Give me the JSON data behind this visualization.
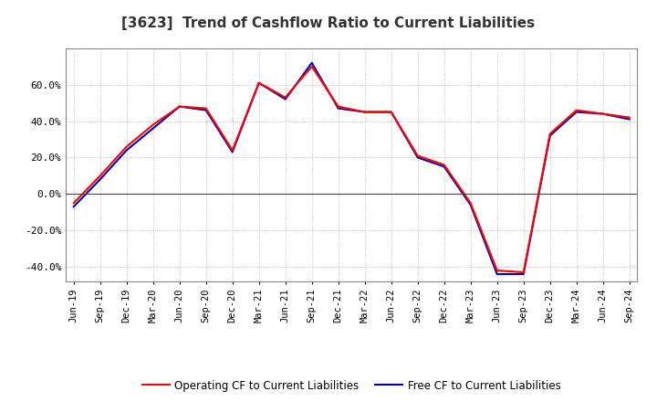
{
  "title": "[3623]  Trend of Cashflow Ratio to Current Liabilities",
  "x_labels": [
    "Jun-19",
    "Sep-19",
    "Dec-19",
    "Mar-20",
    "Jun-20",
    "Sep-20",
    "Dec-20",
    "Mar-21",
    "Jun-21",
    "Sep-21",
    "Dec-21",
    "Mar-22",
    "Jun-22",
    "Sep-22",
    "Dec-22",
    "Mar-23",
    "Jun-23",
    "Sep-23",
    "Dec-23",
    "Mar-24",
    "Jun-24",
    "Sep-24"
  ],
  "operating_cf": [
    -5.0,
    10.0,
    26.0,
    38.0,
    48.0,
    47.0,
    24.0,
    61.0,
    53.0,
    70.0,
    48.0,
    45.0,
    45.0,
    21.0,
    16.0,
    -5.0,
    -42.0,
    -43.0,
    33.0,
    46.0,
    44.0,
    42.0
  ],
  "free_cf": [
    -7.0,
    8.0,
    24.0,
    36.0,
    48.0,
    46.0,
    23.0,
    61.0,
    52.0,
    72.0,
    47.0,
    45.0,
    45.0,
    20.0,
    15.0,
    -6.0,
    -44.0,
    -44.0,
    32.0,
    45.0,
    44.0,
    41.0
  ],
  "operating_color": "#ff0000",
  "free_color": "#0000bb",
  "ylim": [
    -48,
    80
  ],
  "yticks": [
    -40,
    -20,
    0,
    20,
    40,
    60
  ],
  "background_color": "#ffffff",
  "grid_color": "#999999",
  "title_fontsize": 11,
  "axis_label_fontsize": 7.5,
  "legend_op": "Operating CF to Current Liabilities",
  "legend_free": "Free CF to Current Liabilities"
}
